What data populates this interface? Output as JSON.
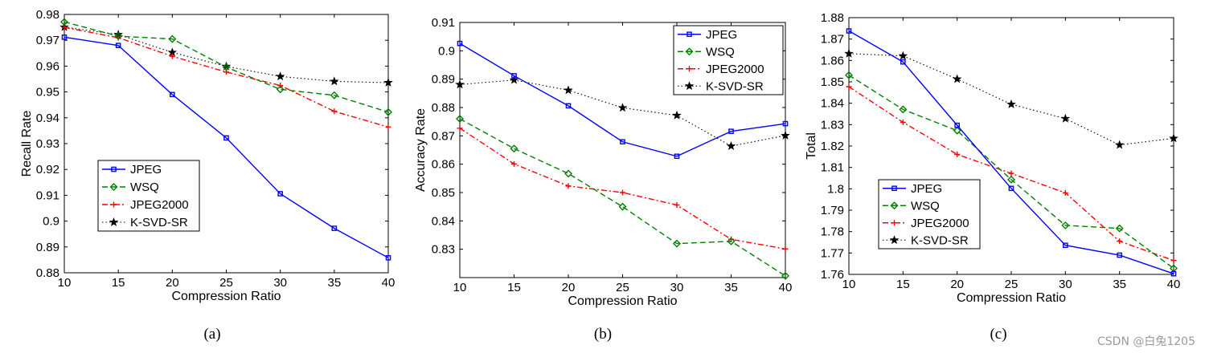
{
  "watermark": "CSDN @白兔1205",
  "chart_data": [
    {
      "type": "line",
      "caption": "(a)",
      "xlabel": "Compression Ratio",
      "ylabel": "Recall Rate",
      "x": [
        10,
        15,
        20,
        25,
        30,
        35,
        40
      ],
      "xlim": [
        10,
        40
      ],
      "ylim": [
        0.88,
        0.98
      ],
      "xticks": [
        "10",
        "15",
        "20",
        "25",
        "30",
        "35",
        "40"
      ],
      "yticks": [
        "0.88",
        "0.89",
        "0.9",
        "0.91",
        "0.92",
        "0.93",
        "0.94",
        "0.95",
        "0.96",
        "0.97",
        "0.98"
      ],
      "grid": false,
      "legend_position": "lower-left",
      "series": [
        {
          "name": "JPEG",
          "color": "#0000ff",
          "line": "solid",
          "marker": "square",
          "values": [
            0.9712,
            0.968,
            0.949,
            0.9322,
            0.9106,
            0.8972,
            0.8858
          ]
        },
        {
          "name": "WSQ",
          "color": "#008000",
          "line": "dashed",
          "marker": "diamond",
          "values": [
            0.9771,
            0.9716,
            0.9705,
            0.9596,
            0.951,
            0.9487,
            0.9422
          ]
        },
        {
          "name": "JPEG2000",
          "color": "#ff0000",
          "line": "dashdot",
          "marker": "plus",
          "values": [
            0.975,
            0.971,
            0.9638,
            0.9577,
            0.9525,
            0.9425,
            0.9364
          ]
        },
        {
          "name": "K-SVD-SR",
          "color": "#000000",
          "line": "dotted",
          "marker": "star",
          "values": [
            0.9751,
            0.9722,
            0.9653,
            0.9599,
            0.956,
            0.9541,
            0.9536
          ]
        }
      ]
    },
    {
      "type": "line",
      "caption": "(b)",
      "xlabel": "Compression Ratio",
      "ylabel": "Accuracy Rate",
      "x": [
        10,
        15,
        20,
        25,
        30,
        35,
        40
      ],
      "xlim": [
        10,
        40
      ],
      "ylim": [
        0.82,
        0.91
      ],
      "xticks": [
        "10",
        "15",
        "20",
        "25",
        "30",
        "35",
        "40"
      ],
      "yticks": [
        "0.83",
        "0.84",
        "0.85",
        "0.86",
        "0.87",
        "0.88",
        "0.89",
        "0.9",
        "0.91"
      ],
      "grid": false,
      "legend_position": "top-right",
      "series": [
        {
          "name": "JPEG",
          "color": "#0000ff",
          "line": "solid",
          "marker": "square",
          "values": [
            0.9026,
            0.8912,
            0.8806,
            0.8679,
            0.8628,
            0.8716,
            0.8743
          ]
        },
        {
          "name": "WSQ",
          "color": "#008000",
          "line": "dashed",
          "marker": "diamond",
          "values": [
            0.876,
            0.8655,
            0.8567,
            0.845,
            0.832,
            0.8328,
            0.8206
          ]
        },
        {
          "name": "JPEG2000",
          "color": "#ff0000",
          "line": "dashdot",
          "marker": "plus",
          "values": [
            0.8727,
            0.8601,
            0.8523,
            0.85,
            0.8456,
            0.8335,
            0.8301
          ]
        },
        {
          "name": "K-SVD-SR",
          "color": "#000000",
          "line": "dotted",
          "marker": "star",
          "values": [
            0.8881,
            0.8897,
            0.8861,
            0.8799,
            0.8772,
            0.8664,
            0.8701
          ]
        }
      ]
    },
    {
      "type": "line",
      "caption": "(c)",
      "xlabel": "Compression Ratio",
      "ylabel": "Total",
      "x": [
        10,
        15,
        20,
        25,
        30,
        35,
        40
      ],
      "xlim": [
        10,
        40
      ],
      "ylim": [
        1.76,
        1.88
      ],
      "xticks": [
        "10",
        "15",
        "20",
        "25",
        "30",
        "35",
        "40"
      ],
      "yticks": [
        "1.76",
        "1.77",
        "1.78",
        "1.79",
        "1.8",
        "1.81",
        "1.82",
        "1.83",
        "1.84",
        "1.85",
        "1.86",
        "1.87",
        "1.88"
      ],
      "grid": false,
      "legend_position": "lower-left",
      "series": [
        {
          "name": "JPEG",
          "color": "#0000ff",
          "line": "solid",
          "marker": "square",
          "values": [
            1.8738,
            1.8593,
            1.8297,
            1.8002,
            1.7736,
            1.769,
            1.7603
          ]
        },
        {
          "name": "WSQ",
          "color": "#008000",
          "line": "dashed",
          "marker": "diamond",
          "values": [
            1.8531,
            1.8371,
            1.8272,
            1.8043,
            1.7829,
            1.7815,
            1.7628
          ]
        },
        {
          "name": "JPEG2000",
          "color": "#ff0000",
          "line": "dashdot",
          "marker": "plus",
          "values": [
            1.8477,
            1.8311,
            1.8161,
            1.8072,
            1.7981,
            1.7755,
            1.7665
          ]
        },
        {
          "name": "K-SVD-SR",
          "color": "#000000",
          "line": "dotted",
          "marker": "star",
          "values": [
            1.8632,
            1.8621,
            1.8513,
            1.8395,
            1.8328,
            1.8205,
            1.8236
          ]
        }
      ]
    }
  ]
}
